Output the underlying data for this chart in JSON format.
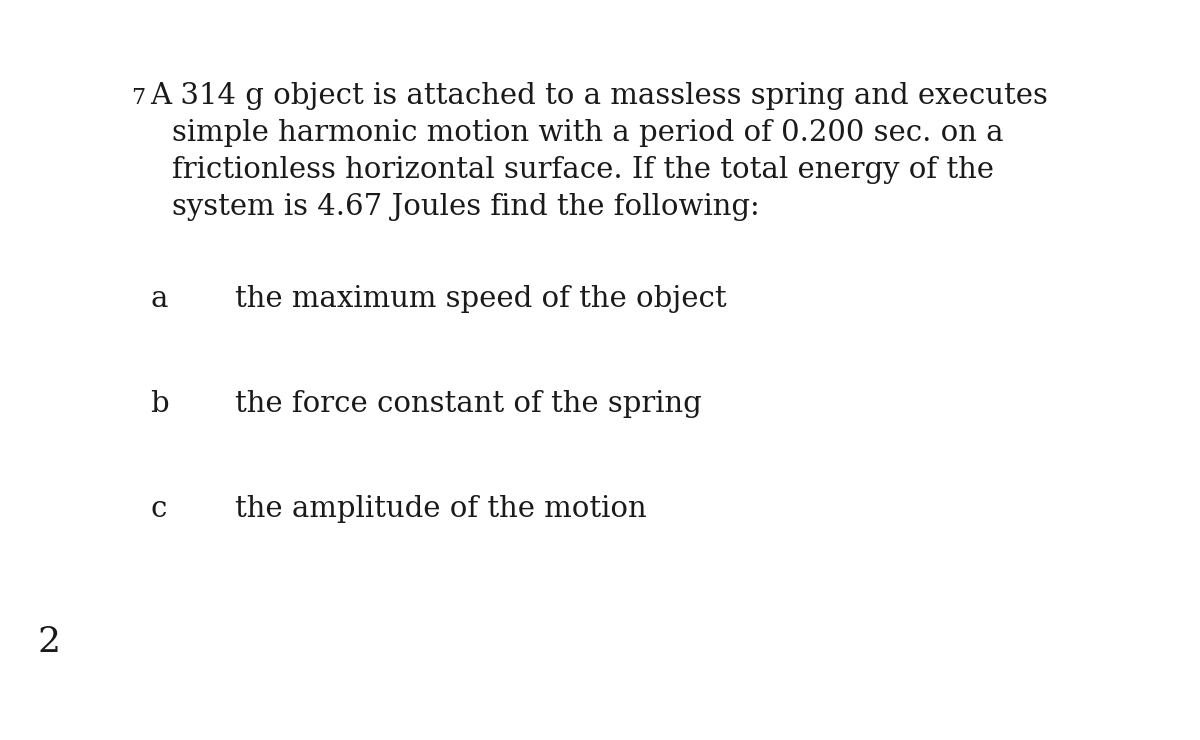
{
  "background_color": "#ffffff",
  "text_color": "#1a1a1a",
  "problem_number": "7",
  "problem_text_line1": "A 314 g object is attached to a massless spring and executes",
  "problem_text_line2": "simple harmonic motion with a period of 0.200 sec. on a",
  "problem_text_line3": "frictionless horizontal surface. If the total energy of the",
  "problem_text_line4": "system is 4.67 Joules find the following:",
  "parts": [
    {
      "label": "a",
      "text": "the maximum speed of the object"
    },
    {
      "label": "b",
      "text": "the force constant of the spring"
    },
    {
      "label": "c",
      "text": "the amplitude of the motion"
    }
  ],
  "footer_number": "2",
  "font_size_problem": 21,
  "font_size_number": 16,
  "font_size_parts": 21,
  "font_size_footer": 26,
  "font_family": "DejaVu Serif"
}
